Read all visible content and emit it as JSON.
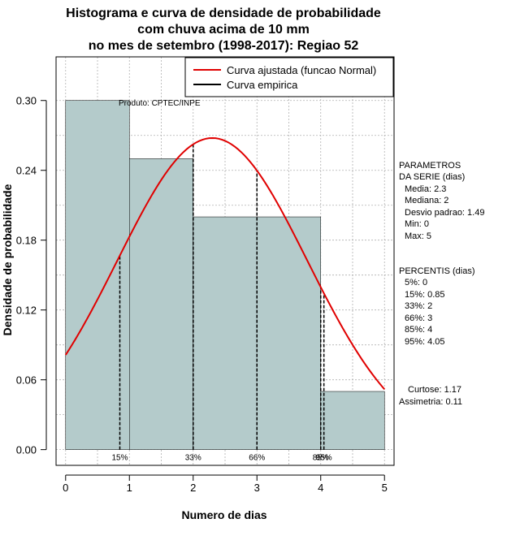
{
  "chart_data": {
    "type": "bar",
    "title_lines": [
      "Histograma e curva de densidade de probabilidade",
      "com chuva acima de 10 mm",
      "no mes de setembro (1998-2017): Regiao 52"
    ],
    "xlabel": "Numero de dias",
    "ylabel": "Densidade de probabilidade",
    "xlim": [
      -0.15,
      5.15
    ],
    "ylim": [
      -0.0135,
      0.3375
    ],
    "x_ticks": [
      0,
      1,
      2,
      3,
      4,
      5
    ],
    "y_ticks": [
      0.0,
      0.06,
      0.12,
      0.18,
      0.24,
      0.3
    ],
    "y_tick_labels": [
      "0.00",
      "0.06",
      "0.12",
      "0.18",
      "0.24",
      "0.30"
    ],
    "bins": [
      {
        "from": 0,
        "to": 1,
        "density": 0.3
      },
      {
        "from": 1,
        "to": 2,
        "density": 0.25
      },
      {
        "from": 2,
        "to": 4,
        "density": 0.2
      },
      {
        "from": 4,
        "to": 5,
        "density": 0.05
      }
    ],
    "fitted_curve": {
      "name": "Curva ajustada (funcao Normal)",
      "distribution": "normal",
      "mean": 2.3,
      "sd": 1.49,
      "from": 0,
      "to": 5
    },
    "empirical_curve": {
      "name": "Curva empirica"
    },
    "percentile_lines": [
      {
        "label": "15%",
        "x": 0.85
      },
      {
        "label": "33%",
        "x": 2
      },
      {
        "label": "66%",
        "x": 3
      },
      {
        "label": "85%",
        "x": 4
      },
      {
        "label": "95%",
        "x": 4.05
      }
    ],
    "legend": {
      "position": "top-right",
      "entries": [
        "Curva ajustada (funcao Normal)",
        "Curva empirica"
      ]
    },
    "source_note": "Produto: CPTEC/INPE",
    "grid": true,
    "colors": {
      "bar_fill": "#b4cbcb",
      "fitted_curve": "#e00000",
      "empirical": "#000000",
      "grid": "#b0b0b0"
    }
  },
  "side_panel": {
    "params_title_lines": [
      "PARAMETROS",
      "DA SERIE (dias)"
    ],
    "params": [
      "Media: 2.3",
      "Mediana: 2",
      "Desvio padrao: 1.49",
      "Min: 0",
      "Max: 5"
    ],
    "percentis_title": "PERCENTIS (dias)",
    "percentis": [
      "5%: 0",
      "15%: 0.85",
      "33%: 2",
      "66%: 3",
      "85%: 4",
      "95%: 4.05"
    ],
    "stats": [
      "Curtose: 1.17",
      "Assimetria: 0.11"
    ]
  }
}
